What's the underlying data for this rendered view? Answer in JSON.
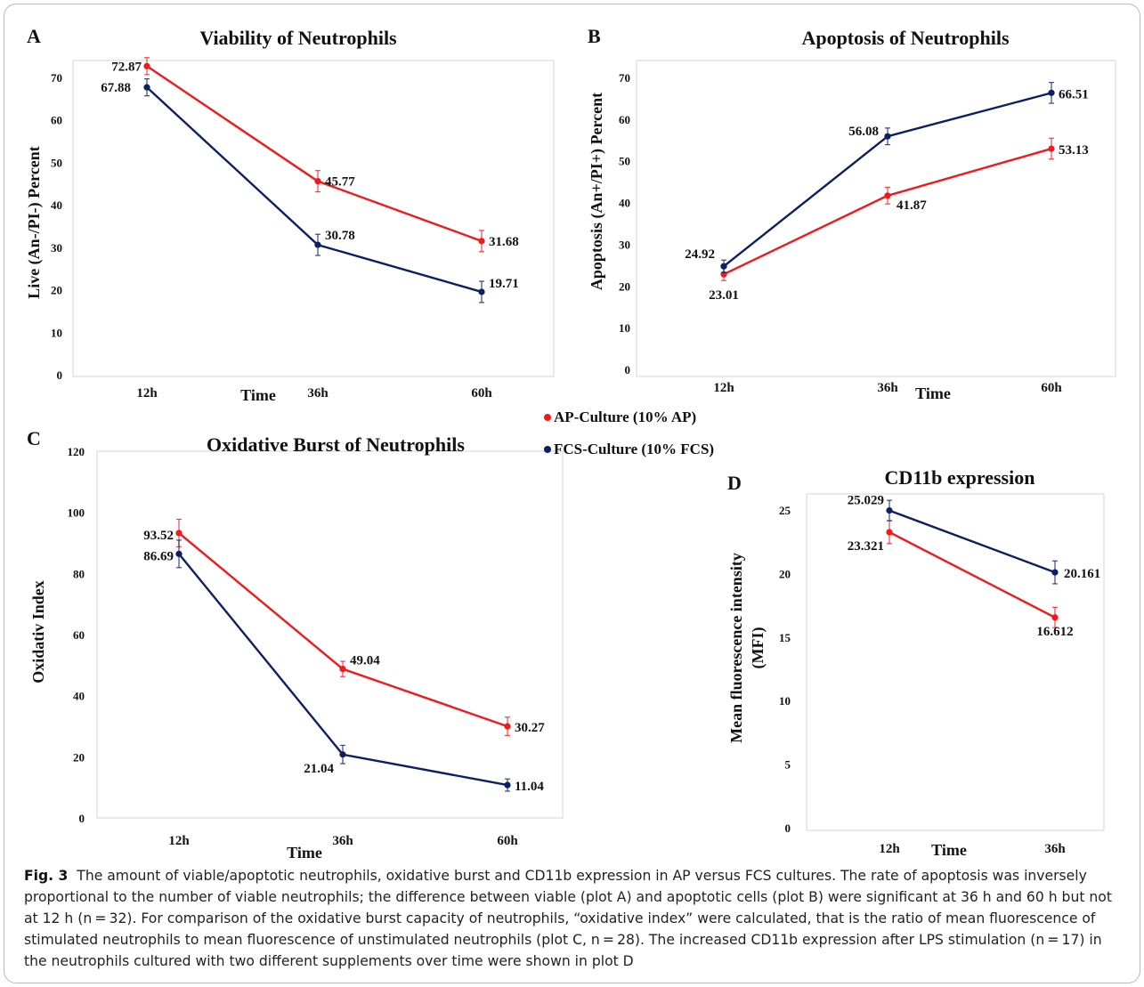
{
  "legend": [
    {
      "label": "AP-Culture (10% AP)",
      "color": "#f0191c"
    },
    {
      "label": "FCS-Culture (10% FCS)",
      "color": "#0c1f63"
    }
  ],
  "chart_data": [
    {
      "panel": "A",
      "type": "line",
      "title": "Viability of Neutrophils",
      "xlabel": "Time",
      "ylabel": "Live (An-/PI-) Percent",
      "categories": [
        "12h",
        "36h",
        "60h"
      ],
      "ylim": [
        0,
        70
      ],
      "yticks": [
        0,
        10,
        20,
        30,
        40,
        50,
        60,
        70
      ],
      "series": [
        {
          "name": "AP-Culture (10% AP)",
          "values": [
            72.87,
            45.77,
            31.68
          ],
          "labels": [
            "72.87",
            "45.77",
            "31.68"
          ],
          "errors": [
            2,
            2.5,
            2.5
          ]
        },
        {
          "name": "FCS-Culture (10% FCS)",
          "values": [
            67.88,
            30.78,
            19.71
          ],
          "labels": [
            "67.88",
            "30.78",
            "19.71"
          ],
          "errors": [
            2,
            2.5,
            2.5
          ]
        }
      ]
    },
    {
      "panel": "B",
      "type": "line",
      "title": "Apoptosis of Neutrophils",
      "xlabel": "Time",
      "ylabel": "Apoptosis (An+/PI+) Percent",
      "categories": [
        "12h",
        "36h",
        "60h"
      ],
      "ylim": [
        0,
        70
      ],
      "yticks": [
        0,
        10,
        20,
        30,
        40,
        50,
        60,
        70
      ],
      "series": [
        {
          "name": "AP-Culture (10% AP)",
          "values": [
            23.01,
            41.87,
            53.13
          ],
          "labels": [
            "23.01",
            "41.87",
            "53.13"
          ],
          "errors": [
            1.5,
            2,
            2.5
          ]
        },
        {
          "name": "FCS-Culture (10% FCS)",
          "values": [
            24.92,
            56.08,
            66.51
          ],
          "labels": [
            "24.92",
            "56.08",
            "66.51"
          ],
          "errors": [
            1.5,
            2,
            2.5
          ]
        }
      ]
    },
    {
      "panel": "C",
      "type": "line",
      "title": "Oxidative Burst of Neutrophils",
      "xlabel": "Time",
      "ylabel": "Oxidativ Index",
      "categories": [
        "12h",
        "36h",
        "60h"
      ],
      "ylim": [
        0,
        120
      ],
      "yticks": [
        0,
        20,
        40,
        60,
        80,
        100,
        120
      ],
      "series": [
        {
          "name": "AP-Culture (10% AP)",
          "values": [
            93.52,
            49.04,
            30.27
          ],
          "labels": [
            "93.52",
            "49.04",
            "30.27"
          ],
          "errors": [
            4.5,
            2.5,
            3
          ]
        },
        {
          "name": "FCS-Culture (10% FCS)",
          "values": [
            86.69,
            21.04,
            11.04
          ],
          "labels": [
            "86.69",
            "21.04",
            "11.04"
          ],
          "errors": [
            4.5,
            3,
            2
          ]
        }
      ]
    },
    {
      "panel": "D",
      "type": "line",
      "title": "CD11b expression",
      "xlabel": "Time",
      "ylabel": "Mean fluorescence intensity (MFI)",
      "ylabel_lines": [
        "Mean fluorescence intensity",
        "(MFI)"
      ],
      "categories": [
        "12h",
        "36h"
      ],
      "ylim": [
        0,
        25
      ],
      "yticks": [
        0,
        5,
        10,
        15,
        20,
        25
      ],
      "series": [
        {
          "name": "AP-Culture (10% AP)",
          "values": [
            23.321,
            16.612
          ],
          "labels": [
            "23.321",
            "16.612"
          ],
          "errors": [
            0.9,
            0.8
          ]
        },
        {
          "name": "FCS-Culture (10% FCS)",
          "values": [
            25.029,
            20.161
          ],
          "labels": [
            "25.029",
            "20.161"
          ],
          "errors": [
            0.8,
            0.9
          ]
        }
      ]
    }
  ],
  "caption": {
    "label": "Fig. 3",
    "text": "The amount of viable/apoptotic neutrophils, oxidative burst and CD11b expression in AP versus FCS cultures. The rate of apoptosis was inversely proportional to the number of viable neutrophils; the difference between viable (plot A) and apoptotic cells (plot B) were significant at 36 h and 60 h but not at 12 h (n = 32). For comparison of the oxidative burst capacity of neutrophils, “oxidative index” were calculated, that is the ratio of mean fluorescence of stimulated neutrophils to mean fluorescence of unstimulated neutrophils (plot C, n = 28). The increased CD11b expression after LPS stimulation (n = 17) in the neutrophils cultured with two different supplements over time were shown in plot D"
  }
}
